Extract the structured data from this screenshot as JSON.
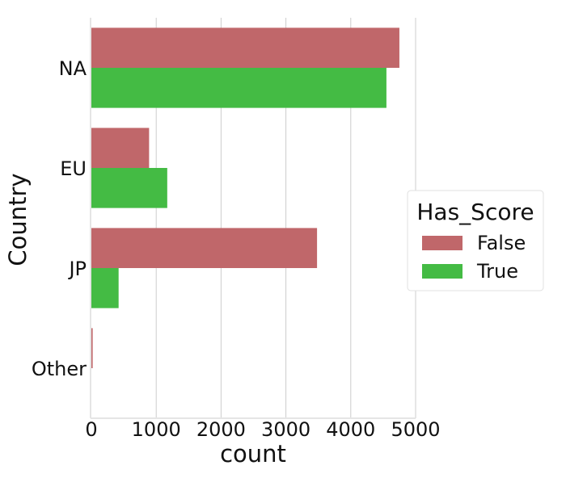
{
  "chart_data": {
    "type": "bar",
    "orientation": "horizontal",
    "categories": [
      "NA",
      "EU",
      "JP",
      "Other"
    ],
    "series": [
      {
        "name": "False",
        "values": [
          4750,
          890,
          3480,
          20
        ],
        "color": "#c0676a"
      },
      {
        "name": "True",
        "values": [
          4550,
          1170,
          420,
          0
        ],
        "color": "#44bb44"
      }
    ],
    "xlabel": "count",
    "ylabel": "Country",
    "xlim": [
      0,
      5000
    ],
    "xticks": [
      "0",
      "1000",
      "2000",
      "3000",
      "4000",
      "5000"
    ],
    "grid": "vertical",
    "legend": {
      "title": "Has_Score",
      "placement": "right"
    }
  }
}
